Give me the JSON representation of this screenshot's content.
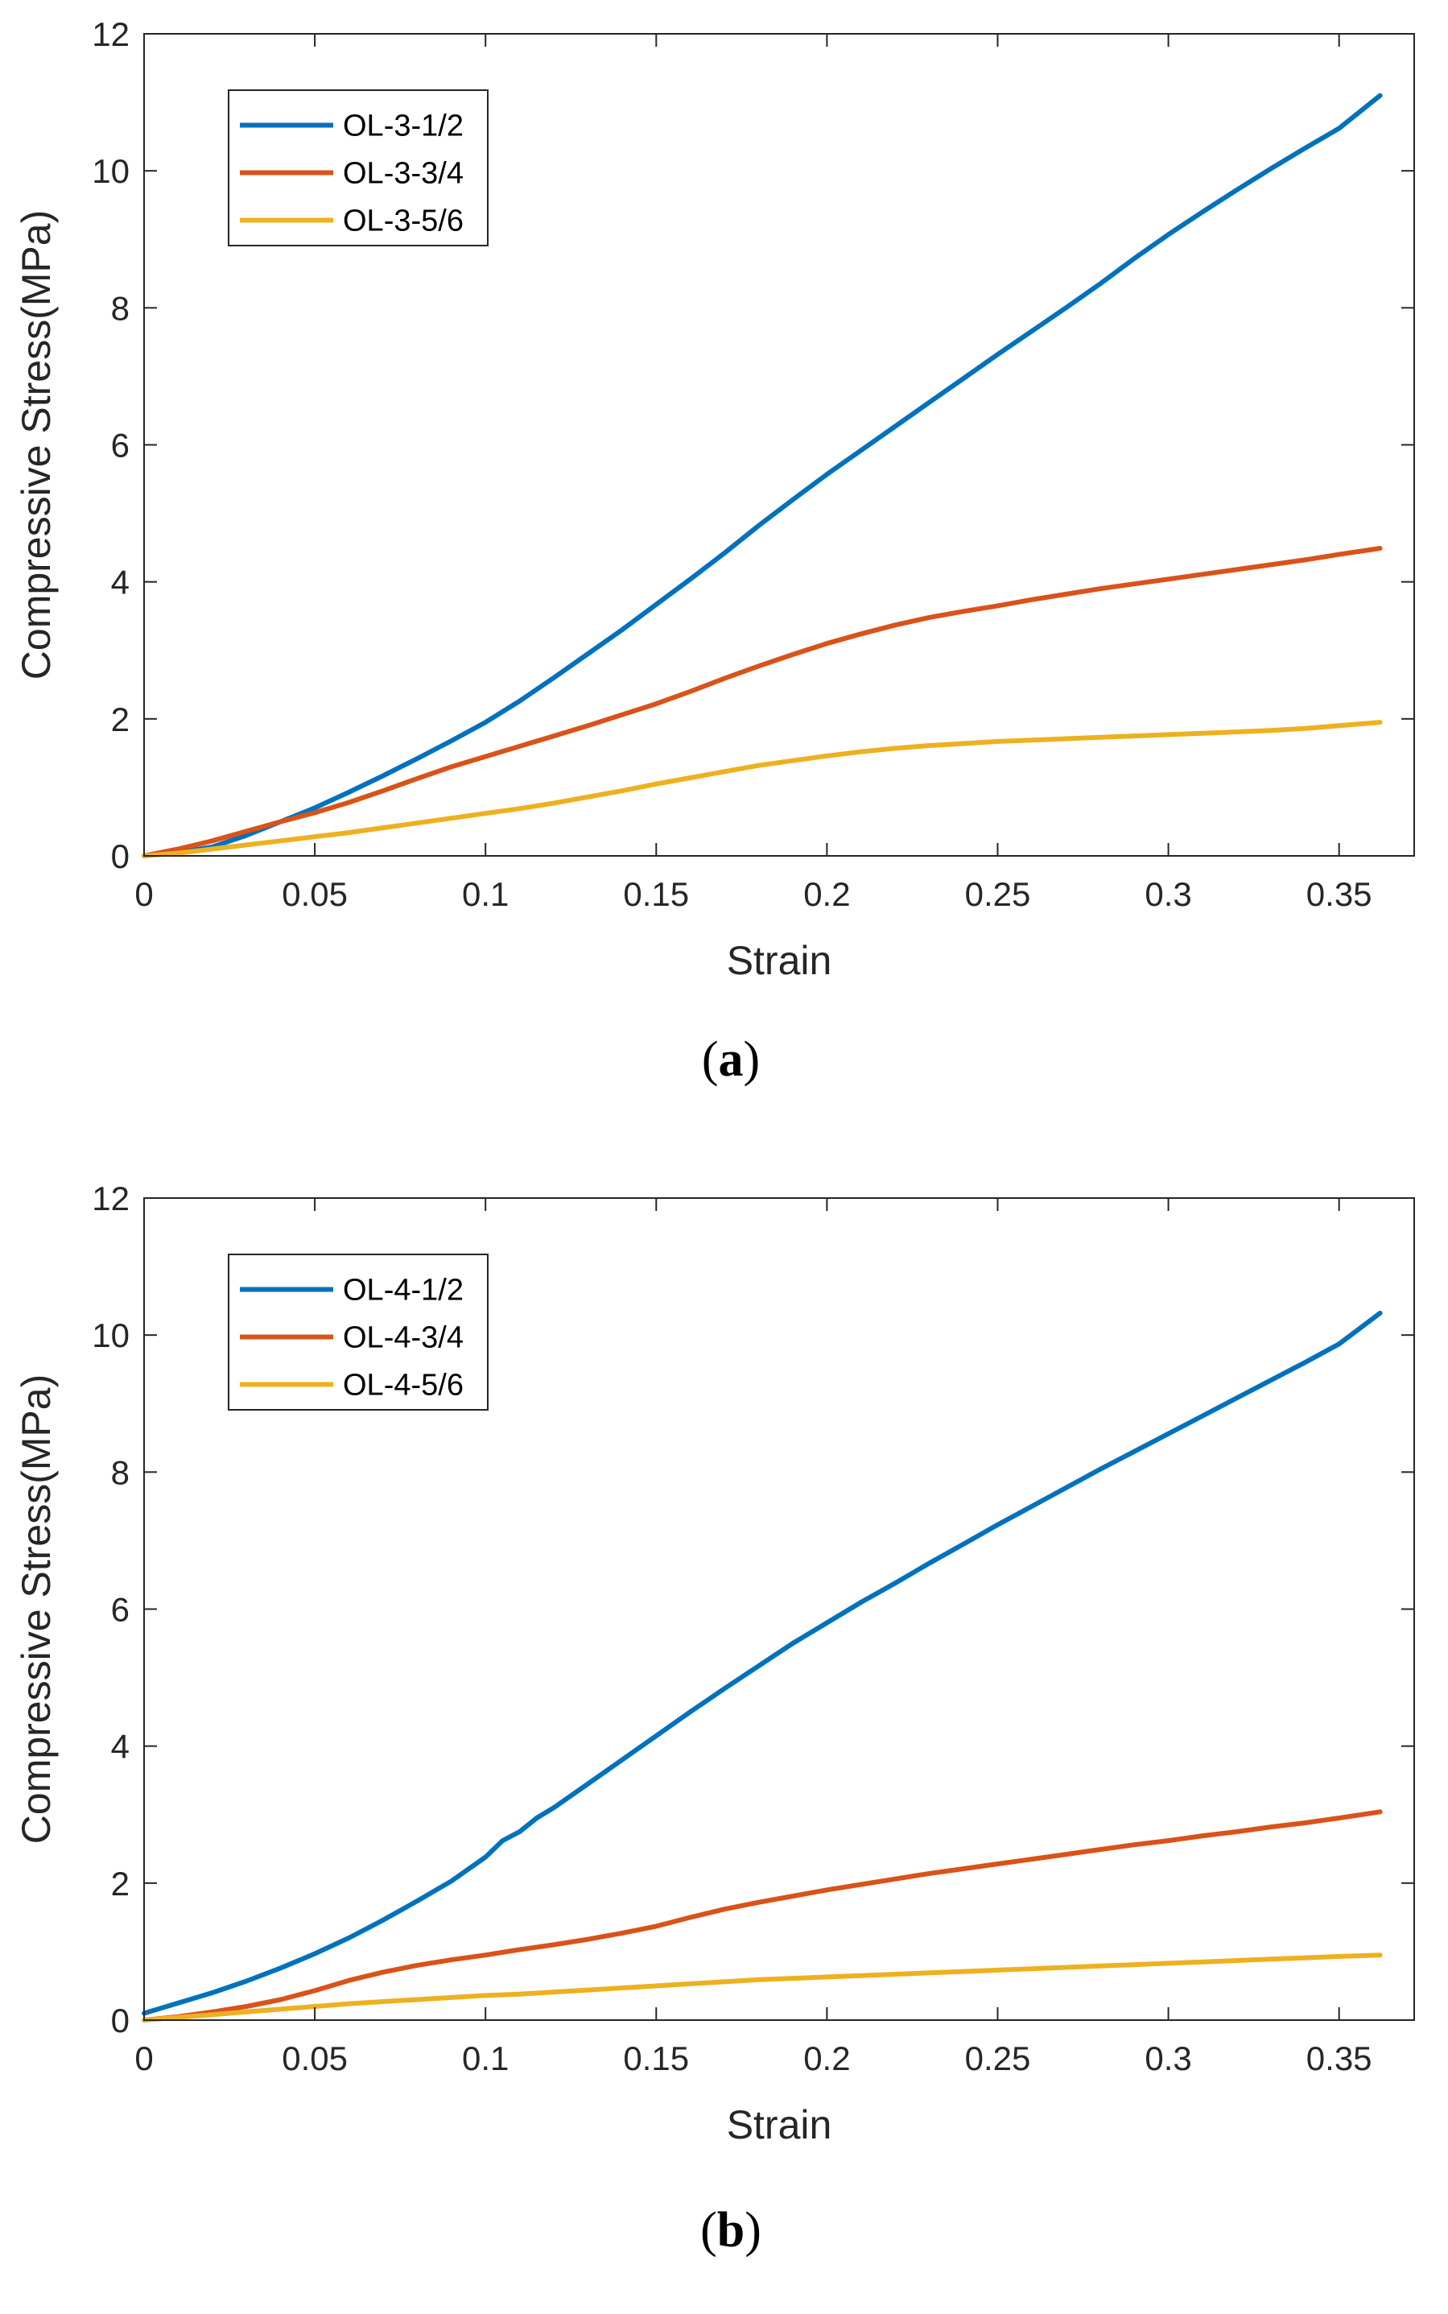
{
  "chart_data": [
    {
      "type": "line",
      "panel_label": "a",
      "title": "",
      "xlabel": "Strain",
      "ylabel": "Compressive Stress(MPa)",
      "xlim": [
        0,
        0.372
      ],
      "ylim": [
        0,
        12
      ],
      "xticks": [
        0,
        0.05,
        0.1,
        0.15,
        0.2,
        0.25,
        0.3,
        0.35
      ],
      "xtick_labels": [
        "0",
        "0.05",
        "0.1",
        "0.15",
        "0.2",
        "0.25",
        "0.3",
        "0.35"
      ],
      "yticks": [
        0,
        2,
        4,
        6,
        8,
        10,
        12
      ],
      "ytick_labels": [
        "0",
        "2",
        "4",
        "6",
        "8",
        "10",
        "12"
      ],
      "grid": false,
      "legend_position": "top-left",
      "series": [
        {
          "name": "OL-3-1/2",
          "color": "#0072BD",
          "x": [
            0,
            0.01,
            0.02,
            0.03,
            0.04,
            0.05,
            0.06,
            0.07,
            0.08,
            0.09,
            0.1,
            0.11,
            0.12,
            0.13,
            0.14,
            0.15,
            0.16,
            0.17,
            0.18,
            0.19,
            0.2,
            0.21,
            0.22,
            0.23,
            0.24,
            0.25,
            0.26,
            0.27,
            0.28,
            0.29,
            0.3,
            0.31,
            0.32,
            0.33,
            0.34,
            0.35,
            0.362
          ],
          "y": [
            0,
            0.05,
            0.13,
            0.3,
            0.5,
            0.7,
            0.93,
            1.17,
            1.42,
            1.68,
            1.95,
            2.26,
            2.6,
            2.95,
            3.3,
            3.67,
            4.04,
            4.42,
            4.82,
            5.2,
            5.57,
            5.92,
            6.27,
            6.62,
            6.97,
            7.32,
            7.66,
            8.0,
            8.35,
            8.72,
            9.07,
            9.4,
            9.72,
            10.03,
            10.33,
            10.62,
            11.1
          ]
        },
        {
          "name": "OL-3-3/4",
          "color": "#D95319",
          "x": [
            0,
            0.01,
            0.02,
            0.03,
            0.04,
            0.05,
            0.06,
            0.07,
            0.08,
            0.09,
            0.1,
            0.11,
            0.12,
            0.13,
            0.14,
            0.15,
            0.16,
            0.17,
            0.18,
            0.19,
            0.2,
            0.21,
            0.22,
            0.23,
            0.24,
            0.25,
            0.26,
            0.27,
            0.28,
            0.29,
            0.3,
            0.31,
            0.32,
            0.33,
            0.34,
            0.35,
            0.362
          ],
          "y": [
            0,
            0.1,
            0.22,
            0.36,
            0.5,
            0.63,
            0.78,
            0.95,
            1.13,
            1.3,
            1.45,
            1.6,
            1.75,
            1.9,
            2.06,
            2.22,
            2.4,
            2.59,
            2.77,
            2.94,
            3.1,
            3.24,
            3.37,
            3.48,
            3.57,
            3.65,
            3.74,
            3.82,
            3.9,
            3.97,
            4.04,
            4.11,
            4.18,
            4.25,
            4.32,
            4.4,
            4.49
          ]
        },
        {
          "name": "OL-3-5/6",
          "color": "#EDB120",
          "x": [
            0,
            0.01,
            0.02,
            0.03,
            0.04,
            0.05,
            0.06,
            0.07,
            0.08,
            0.09,
            0.1,
            0.11,
            0.12,
            0.13,
            0.14,
            0.15,
            0.16,
            0.17,
            0.18,
            0.19,
            0.2,
            0.21,
            0.22,
            0.23,
            0.24,
            0.25,
            0.26,
            0.27,
            0.28,
            0.29,
            0.3,
            0.31,
            0.32,
            0.33,
            0.34,
            0.35,
            0.362
          ],
          "y": [
            0,
            0.04,
            0.1,
            0.16,
            0.22,
            0.28,
            0.34,
            0.41,
            0.48,
            0.55,
            0.62,
            0.69,
            0.77,
            0.86,
            0.95,
            1.05,
            1.14,
            1.23,
            1.32,
            1.39,
            1.46,
            1.52,
            1.57,
            1.61,
            1.64,
            1.67,
            1.69,
            1.71,
            1.73,
            1.75,
            1.77,
            1.79,
            1.81,
            1.83,
            1.86,
            1.9,
            1.95
          ]
        }
      ]
    },
    {
      "type": "line",
      "panel_label": "b",
      "title": "",
      "xlabel": "Strain",
      "ylabel": "Compressive Stress(MPa)",
      "xlim": [
        0,
        0.372
      ],
      "ylim": [
        0,
        12
      ],
      "xticks": [
        0,
        0.05,
        0.1,
        0.15,
        0.2,
        0.25,
        0.3,
        0.35
      ],
      "xtick_labels": [
        "0",
        "0.05",
        "0.1",
        "0.15",
        "0.2",
        "0.25",
        "0.3",
        "0.35"
      ],
      "yticks": [
        0,
        2,
        4,
        6,
        8,
        10,
        12
      ],
      "ytick_labels": [
        "0",
        "2",
        "4",
        "6",
        "8",
        "10",
        "12"
      ],
      "grid": false,
      "legend_position": "top-left",
      "series": [
        {
          "name": "OL-4-1/2",
          "color": "#0072BD",
          "x": [
            0,
            0.01,
            0.02,
            0.03,
            0.04,
            0.05,
            0.06,
            0.07,
            0.08,
            0.09,
            0.1,
            0.105,
            0.11,
            0.115,
            0.12,
            0.13,
            0.14,
            0.15,
            0.16,
            0.17,
            0.18,
            0.19,
            0.2,
            0.21,
            0.22,
            0.23,
            0.24,
            0.25,
            0.26,
            0.27,
            0.28,
            0.29,
            0.3,
            0.31,
            0.32,
            0.33,
            0.34,
            0.35,
            0.362
          ],
          "y": [
            0.1,
            0.25,
            0.4,
            0.57,
            0.76,
            0.97,
            1.2,
            1.46,
            1.74,
            2.03,
            2.38,
            2.62,
            2.75,
            2.95,
            3.1,
            3.45,
            3.8,
            4.15,
            4.5,
            4.84,
            5.17,
            5.5,
            5.8,
            6.1,
            6.38,
            6.67,
            6.95,
            7.23,
            7.5,
            7.77,
            8.04,
            8.3,
            8.56,
            8.82,
            9.08,
            9.34,
            9.6,
            9.87,
            10.32
          ]
        },
        {
          "name": "OL-4-3/4",
          "color": "#D95319",
          "x": [
            0,
            0.01,
            0.02,
            0.03,
            0.04,
            0.05,
            0.06,
            0.07,
            0.08,
            0.09,
            0.1,
            0.11,
            0.12,
            0.13,
            0.14,
            0.15,
            0.16,
            0.17,
            0.18,
            0.19,
            0.2,
            0.21,
            0.22,
            0.23,
            0.24,
            0.25,
            0.26,
            0.27,
            0.28,
            0.29,
            0.3,
            0.31,
            0.32,
            0.33,
            0.34,
            0.35,
            0.362
          ],
          "y": [
            0,
            0.05,
            0.12,
            0.2,
            0.3,
            0.43,
            0.58,
            0.7,
            0.8,
            0.88,
            0.95,
            1.03,
            1.1,
            1.18,
            1.27,
            1.37,
            1.5,
            1.62,
            1.72,
            1.81,
            1.9,
            1.98,
            2.06,
            2.14,
            2.21,
            2.28,
            2.35,
            2.42,
            2.49,
            2.56,
            2.62,
            2.69,
            2.75,
            2.82,
            2.88,
            2.95,
            3.04
          ]
        },
        {
          "name": "OL-4-5/6",
          "color": "#EDB120",
          "x": [
            0,
            0.01,
            0.02,
            0.03,
            0.04,
            0.05,
            0.06,
            0.07,
            0.08,
            0.09,
            0.1,
            0.11,
            0.12,
            0.13,
            0.14,
            0.15,
            0.16,
            0.17,
            0.18,
            0.19,
            0.2,
            0.21,
            0.22,
            0.23,
            0.24,
            0.25,
            0.26,
            0.27,
            0.28,
            0.29,
            0.3,
            0.31,
            0.32,
            0.33,
            0.34,
            0.35,
            0.362
          ],
          "y": [
            0,
            0.04,
            0.08,
            0.12,
            0.16,
            0.2,
            0.24,
            0.27,
            0.3,
            0.33,
            0.36,
            0.38,
            0.41,
            0.44,
            0.47,
            0.5,
            0.53,
            0.56,
            0.59,
            0.61,
            0.63,
            0.65,
            0.67,
            0.69,
            0.71,
            0.73,
            0.75,
            0.77,
            0.79,
            0.81,
            0.83,
            0.85,
            0.87,
            0.89,
            0.91,
            0.93,
            0.95
          ]
        }
      ]
    }
  ]
}
